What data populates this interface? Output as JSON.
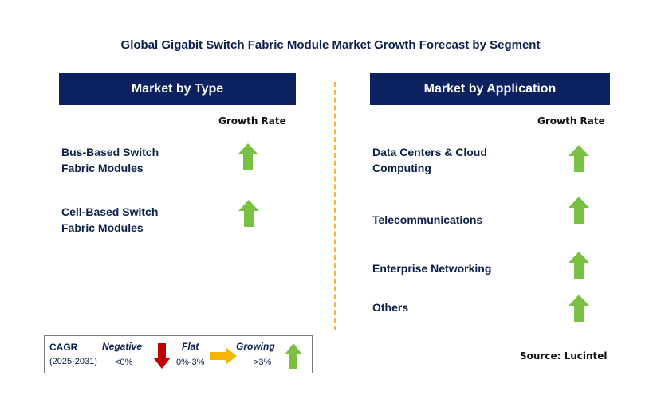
{
  "title": "Global Gigabit Switch Fabric Module Market Growth Forecast by Segment",
  "left_panel": {
    "header": "Market by Type",
    "growth_label": "Growth Rate",
    "segments": [
      {
        "label_line1": "Bus-Based Switch",
        "label_line2": "Fabric Modules",
        "trend": "growing"
      },
      {
        "label_line1": "Cell-Based Switch",
        "label_line2": "Fabric Modules",
        "trend": "growing"
      }
    ]
  },
  "right_panel": {
    "header": "Market by Application",
    "growth_label": "Growth Rate",
    "segments": [
      {
        "label_line1": "Data Centers & Cloud",
        "label_line2": "Computing",
        "trend": "growing"
      },
      {
        "label_line1": "Telecommunications",
        "trend": "growing"
      },
      {
        "label_line1": "Enterprise Networking",
        "trend": "growing"
      },
      {
        "label_line1": "Others",
        "trend": "growing"
      }
    ]
  },
  "legend": {
    "cagr": "CAGR",
    "years": "(2025-2031)",
    "negative": {
      "label": "Negative",
      "range": "<0%",
      "icon": "red-down-arrow-icon"
    },
    "flat": {
      "label": "Flat",
      "range": "0%-3%",
      "icon": "orange-right-arrow-icon"
    },
    "growing": {
      "label": "Growing",
      "range": ">3%",
      "icon": "green-up-arrow-icon"
    }
  },
  "source": "Source: Lucintel",
  "colors": {
    "header_bg": "#0b2160",
    "divider": "#f2b632",
    "growing": "#7ac143",
    "negative": "#c00000",
    "flat": "#f5b400"
  }
}
